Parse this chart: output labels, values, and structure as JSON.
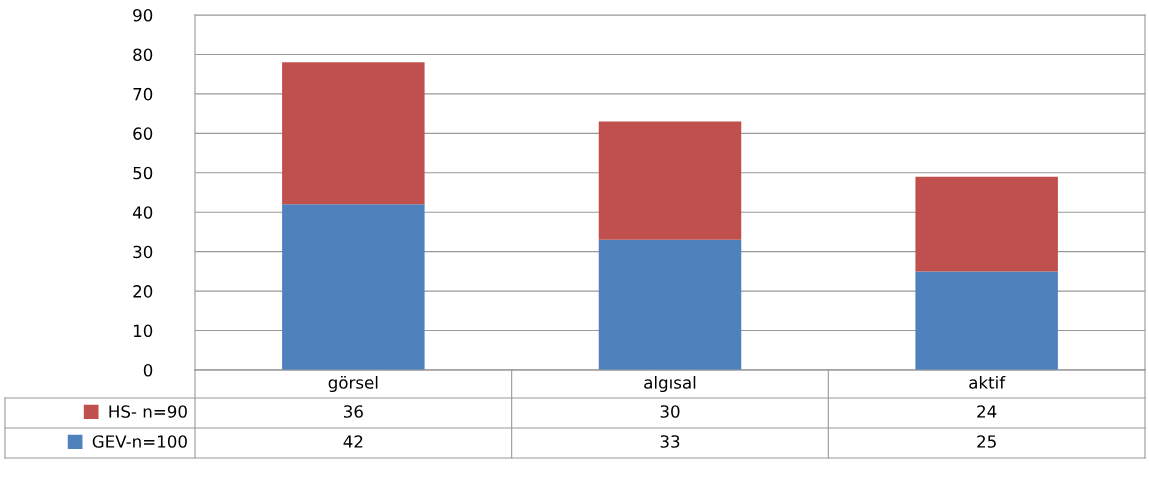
{
  "chart_data": {
    "type": "bar",
    "stacked": true,
    "categories": [
      "görsel",
      "algısal",
      "aktif"
    ],
    "series": [
      {
        "name": "GEV-n=100",
        "color": "#4f81bd",
        "values": [
          42,
          33,
          25
        ]
      },
      {
        "name": "HS- n=90",
        "color": "#c0504d",
        "values": [
          36,
          30,
          24
        ]
      }
    ],
    "ylim": [
      0,
      90
    ],
    "yticks": [
      0,
      10,
      20,
      30,
      40,
      50,
      60,
      70,
      80,
      90
    ],
    "grid": "y",
    "legend": "bottom",
    "data_labels": true
  }
}
